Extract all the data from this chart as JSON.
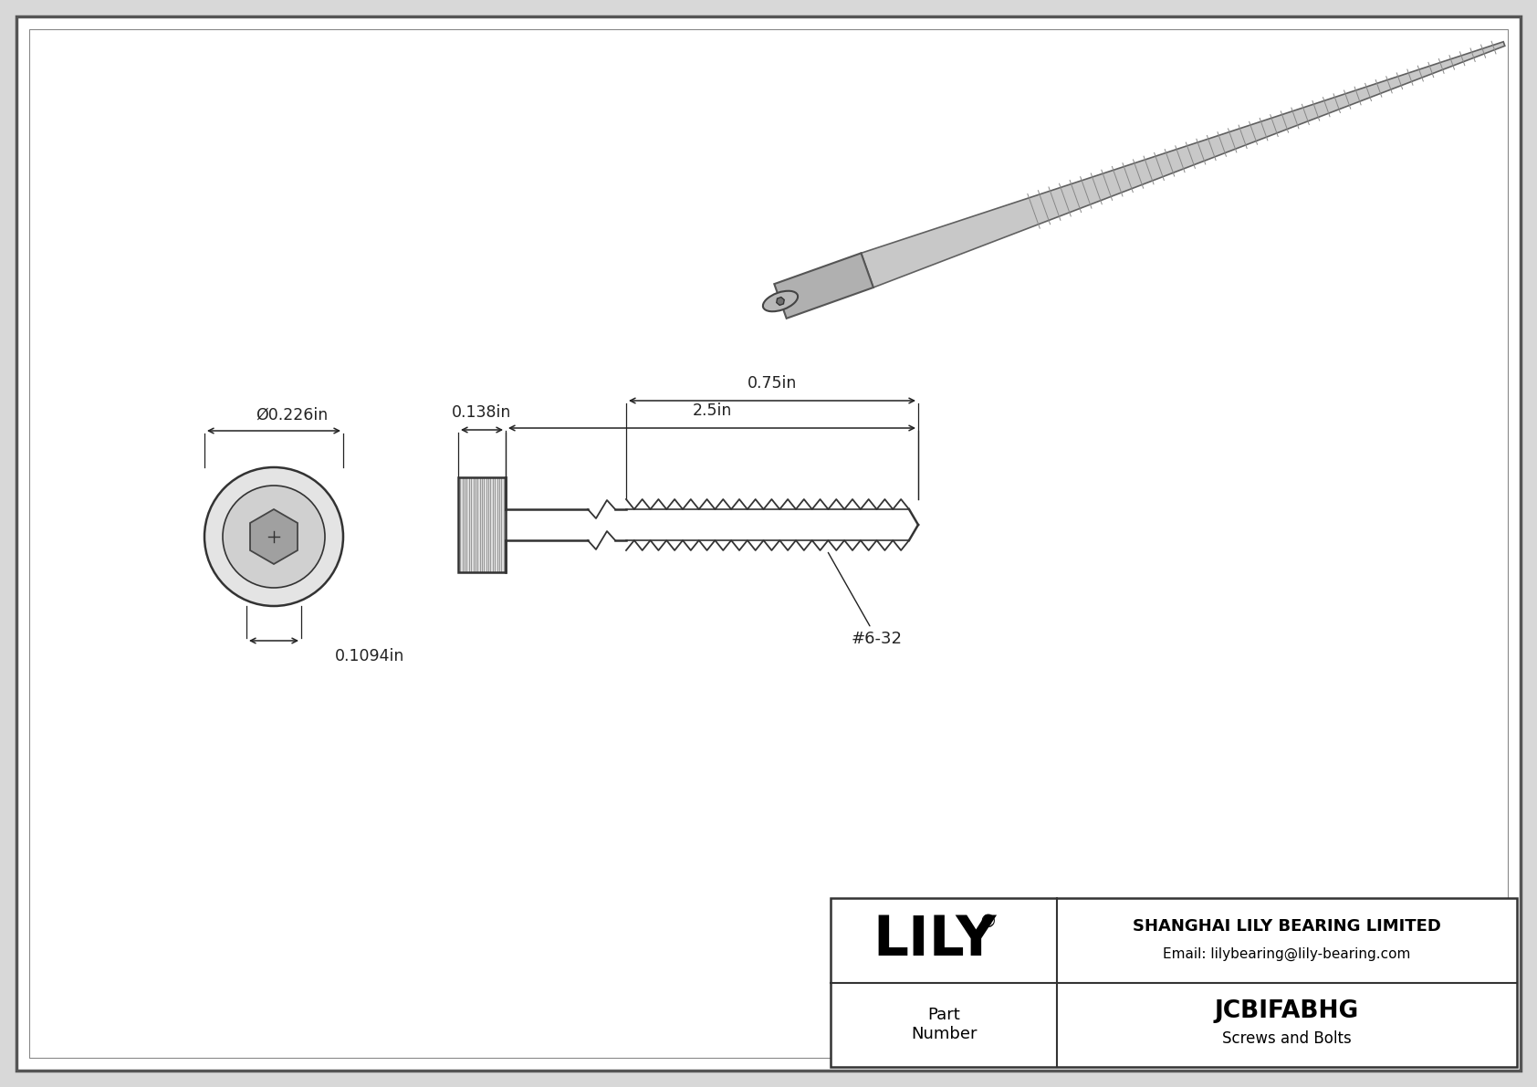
{
  "bg_color": "#d8d8d8",
  "drawing_bg": "#ffffff",
  "line_color": "#333333",
  "dim_color": "#222222",
  "title": "JCBIFABHG",
  "subtitle": "Screws and Bolts",
  "company": "SHANGHAI LILY BEARING LIMITED",
  "email": "Email: lilybearing@lily-bearing.com",
  "part_label": "Part\nNumber",
  "logo": "LILY",
  "logo_reg": "®",
  "dim_diameter": "Ø0.226in",
  "dim_head_height": "0.138in",
  "dim_length": "2.5in",
  "dim_thread": "0.75in",
  "dim_head_width": "0.1094in",
  "thread_label": "#6-32",
  "fig_w": 16.84,
  "fig_h": 11.91,
  "dpi": 100
}
